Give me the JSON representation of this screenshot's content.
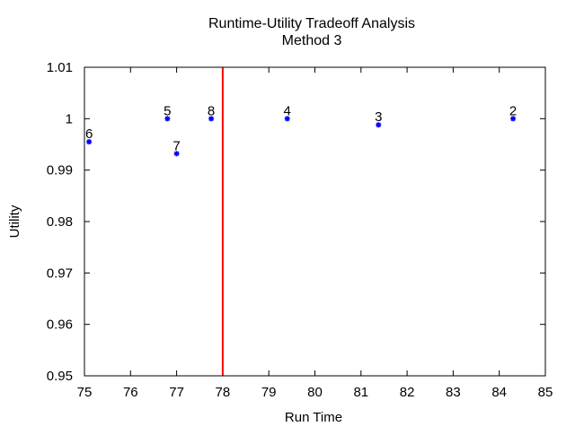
{
  "chart_data": {
    "type": "scatter",
    "title": [
      "Runtime-Utility Tradeoff Analysis",
      "Method 3"
    ],
    "xlabel": "Run Time",
    "ylabel": "Utility",
    "xlim": [
      75,
      85
    ],
    "ylim": [
      0.95,
      1.01
    ],
    "xticks": [
      "75",
      "76",
      "77",
      "78",
      "79",
      "80",
      "81",
      "82",
      "83",
      "84",
      "85"
    ],
    "yticks": [
      "0.95",
      "0.96",
      "0.97",
      "0.98",
      "0.99",
      "1",
      "1.01"
    ],
    "grid": false,
    "legend": false,
    "point_color": "#0000ff",
    "points": [
      {
        "label": "6",
        "x": 75.1,
        "y": 0.9955
      },
      {
        "label": "5",
        "x": 76.8,
        "y": 1.0
      },
      {
        "label": "7",
        "x": 77.0,
        "y": 0.9932
      },
      {
        "label": "8",
        "x": 77.75,
        "y": 1.0
      },
      {
        "label": "4",
        "x": 79.4,
        "y": 1.0
      },
      {
        "label": "3",
        "x": 81.38,
        "y": 0.9988
      },
      {
        "label": "2",
        "x": 84.3,
        "y": 1.0
      }
    ],
    "vertical_line": {
      "x": 78.0,
      "color": "#ff0000"
    }
  }
}
